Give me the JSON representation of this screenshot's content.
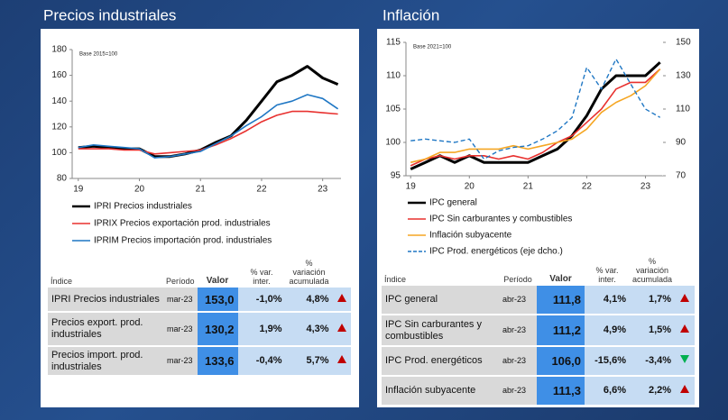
{
  "chart_data": [
    {
      "type": "line",
      "title": "Precios industriales",
      "annotation": "Base 2015=100",
      "legend": "bottom",
      "x": [
        19,
        19.25,
        19.5,
        19.75,
        20,
        20.25,
        20.5,
        20.75,
        21,
        21.25,
        21.5,
        21.75,
        22,
        22.25,
        22.5,
        22.75,
        23,
        23.25
      ],
      "xlim": [
        18.9,
        23.3
      ],
      "xticks": [
        19,
        20,
        21,
        22,
        23
      ],
      "ylim": [
        80,
        180
      ],
      "yticks": [
        80,
        100,
        120,
        140,
        160,
        180
      ],
      "series": [
        {
          "name": "IPRI Precios industriales",
          "color": "#000000",
          "width": 3,
          "dash": false,
          "values": [
            104,
            105,
            104,
            103,
            103,
            97,
            97,
            99,
            102,
            108,
            113,
            125,
            140,
            155,
            160,
            167,
            158,
            153
          ]
        },
        {
          "name": "IPRIX Precios exportación prod. industriales",
          "color": "#e8312f",
          "width": 1.6,
          "dash": false,
          "values": [
            103,
            103,
            103,
            102,
            102,
            99,
            100,
            101,
            102,
            106,
            111,
            117,
            124,
            129,
            132,
            132,
            131,
            130
          ]
        },
        {
          "name": "IPRIM Precios importación prod. industriales",
          "color": "#1f77c4",
          "width": 1.6,
          "dash": false,
          "values": [
            104,
            106,
            105,
            104,
            103,
            96,
            97,
            99,
            101,
            107,
            113,
            121,
            128,
            137,
            140,
            145,
            142,
            134
          ]
        }
      ]
    },
    {
      "type": "line",
      "title": "Inflación",
      "annotation": "Base 2021=100",
      "legend": "bottom",
      "x": [
        19,
        19.25,
        19.5,
        19.75,
        20,
        20.25,
        20.5,
        20.75,
        21,
        21.25,
        21.5,
        21.75,
        22,
        22.25,
        22.5,
        22.75,
        23,
        23.25
      ],
      "xlim": [
        18.92,
        23.3
      ],
      "xticks": [
        19,
        20,
        21,
        22,
        23
      ],
      "ylim": [
        95,
        115
      ],
      "yticks": [
        95,
        100,
        105,
        110,
        115
      ],
      "y2lim": [
        70,
        150
      ],
      "y2ticks": [
        70,
        90,
        110,
        130,
        150
      ],
      "series": [
        {
          "name": "IPC general",
          "color": "#000000",
          "width": 3,
          "dash": false,
          "values": [
            96,
            97,
            98,
            97,
            98,
            97,
            97,
            97,
            97,
            98,
            99,
            101,
            104,
            108,
            110,
            110,
            110,
            112
          ]
        },
        {
          "name": "IPC Sin carburantes y combustibles",
          "color": "#e8312f",
          "width": 1.6,
          "dash": false,
          "values": [
            96.5,
            97.5,
            98,
            97.5,
            98,
            98,
            97.5,
            98,
            97.5,
            98.5,
            100,
            101,
            103,
            105,
            108,
            109,
            109,
            111
          ]
        },
        {
          "name": "Inflación subyacente",
          "color": "#f5a623",
          "width": 1.6,
          "dash": false,
          "values": [
            97,
            97.5,
            98.5,
            98.5,
            99,
            99,
            99,
            99.5,
            99,
            99.5,
            100,
            100.5,
            102,
            104.5,
            106,
            107,
            108.5,
            111
          ]
        },
        {
          "name": "IPC Prod. energéticos (eje dcho.)",
          "color": "#1f77c4",
          "width": 1.4,
          "dash": true,
          "axis": "y2",
          "values": [
            91,
            92,
            91,
            90,
            92,
            80,
            85,
            87,
            88,
            92,
            97,
            105,
            135,
            122,
            140,
            125,
            110,
            105
          ]
        }
      ]
    }
  ],
  "tables": [
    {
      "header": [
        "Índice",
        "Período",
        "Valor",
        "% var. inter.",
        "% variación acumulada"
      ],
      "rows": [
        [
          "IPRI Precios industriales",
          "mar-23",
          "153,0",
          "-1,0%",
          "4,8%"
        ],
        [
          "Precios export. prod. industriales",
          "mar-23",
          "130,2",
          "1,9%",
          "4,3%"
        ],
        [
          "Precios import. prod. industriales",
          "mar-23",
          "133,6",
          "-0,4%",
          "5,7%"
        ]
      ],
      "trends": [
        "up",
        "up",
        "up"
      ]
    },
    {
      "header": [
        "Índice",
        "Período",
        "Valor",
        "% var. inter.",
        "% variación acumulada"
      ],
      "rows": [
        [
          "IPC general",
          "abr-23",
          "111,8",
          "4,1%",
          "1,7%"
        ],
        [
          "IPC Sin carburantes y combustibles",
          "abr-23",
          "111,2",
          "4,9%",
          "1,5%"
        ],
        [
          "IPC Prod. energéticos",
          "abr-23",
          "106,0",
          "-15,6%",
          "-3,4%"
        ],
        [
          "Inflación subyacente",
          "abr-23",
          "111,3",
          "6,6%",
          "2,2%"
        ]
      ],
      "trends": [
        "up",
        "up",
        "down",
        "up"
      ]
    }
  ]
}
